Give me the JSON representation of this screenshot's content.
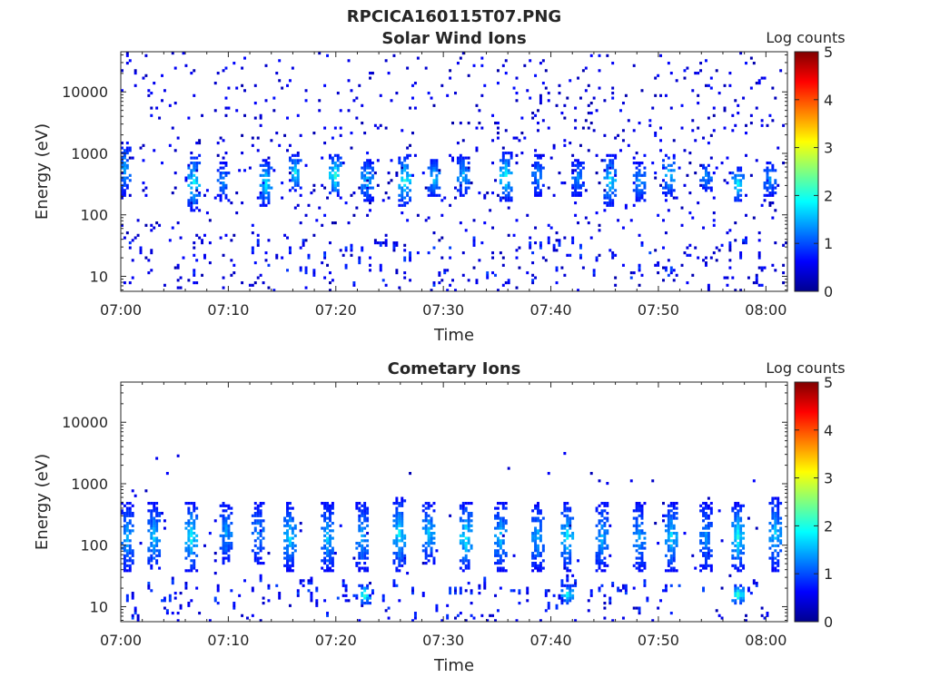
{
  "figure_title": "RPCICA160115T07.PNG",
  "chart_data": [
    {
      "type": "heatmap",
      "title": "Solar Wind Ions",
      "xlabel": "Time",
      "ylabel": "Energy (eV)",
      "x_ticks": [
        "07:00",
        "07:10",
        "07:20",
        "07:30",
        "07:40",
        "07:50",
        "08:00"
      ],
      "x_range_minutes": [
        0,
        62
      ],
      "y_ticks": [
        10,
        100,
        1000,
        10000
      ],
      "y_tick_labels": [
        "10",
        "100",
        "1000",
        "10000"
      ],
      "y_range_ev": [
        5.7,
        45000
      ],
      "y_scale": "log",
      "colorbar": {
        "label": "Log counts",
        "ticks": [
          0,
          1,
          2,
          3,
          4,
          5
        ],
        "range": [
          0,
          5
        ],
        "colormap": "jet"
      },
      "bursts": [
        {
          "t": 0.3,
          "e": [
            200,
            1500
          ],
          "max": 1.4
        },
        {
          "t": 6.8,
          "e": [
            120,
            900
          ],
          "max": 1.9
        },
        {
          "t": 9.5,
          "e": [
            180,
            700
          ],
          "max": 1.3
        },
        {
          "t": 13.5,
          "e": [
            150,
            800
          ],
          "max": 1.8
        },
        {
          "t": 16.3,
          "e": [
            250,
            900
          ],
          "max": 1.8
        },
        {
          "t": 20.0,
          "e": [
            200,
            900
          ],
          "max": 2.1
        },
        {
          "t": 23.0,
          "e": [
            180,
            800
          ],
          "max": 1.6
        },
        {
          "t": 26.3,
          "e": [
            150,
            900
          ],
          "max": 2.0
        },
        {
          "t": 29.2,
          "e": [
            200,
            800
          ],
          "max": 1.7
        },
        {
          "t": 31.8,
          "e": [
            200,
            900
          ],
          "max": 1.5
        },
        {
          "t": 35.8,
          "e": [
            180,
            1000
          ],
          "max": 2.0
        },
        {
          "t": 38.8,
          "e": [
            200,
            900
          ],
          "max": 1.3
        },
        {
          "t": 42.5,
          "e": [
            200,
            800
          ],
          "max": 1.3
        },
        {
          "t": 45.4,
          "e": [
            150,
            900
          ],
          "max": 1.8
        },
        {
          "t": 48.2,
          "e": [
            180,
            700
          ],
          "max": 1.4
        },
        {
          "t": 51.0,
          "e": [
            200,
            900
          ],
          "max": 1.7
        },
        {
          "t": 54.5,
          "e": [
            250,
            700
          ],
          "max": 1.3
        },
        {
          "t": 57.5,
          "e": [
            170,
            600
          ],
          "max": 1.9
        },
        {
          "t": 60.5,
          "e": [
            200,
            700
          ],
          "max": 1.4
        }
      ]
    },
    {
      "type": "heatmap",
      "title": "Cometary Ions",
      "xlabel": "Time",
      "ylabel": "Energy (eV)",
      "x_ticks": [
        "07:00",
        "07:10",
        "07:20",
        "07:30",
        "07:40",
        "07:50",
        "08:00"
      ],
      "x_range_minutes": [
        0,
        62
      ],
      "y_ticks": [
        10,
        100,
        1000,
        10000
      ],
      "y_tick_labels": [
        "10",
        "100",
        "1000",
        "10000"
      ],
      "y_range_ev": [
        5.7,
        45000
      ],
      "y_scale": "log",
      "colorbar": {
        "label": "Log counts",
        "ticks": [
          0,
          1,
          2,
          3,
          4,
          5
        ],
        "range": [
          0,
          5
        ],
        "colormap": "jet"
      },
      "bursts": [
        {
          "t": 0.5,
          "e": [
            40,
            500
          ],
          "max": 1.5
        },
        {
          "t": 3.0,
          "e": [
            40,
            500
          ],
          "max": 1.6
        },
        {
          "t": 6.5,
          "e": [
            40,
            500
          ],
          "max": 1.9
        },
        {
          "t": 9.8,
          "e": [
            50,
            500
          ],
          "max": 1.4
        },
        {
          "t": 12.8,
          "e": [
            50,
            500
          ],
          "max": 1.3
        },
        {
          "t": 15.8,
          "e": [
            40,
            500
          ],
          "max": 1.7
        },
        {
          "t": 19.3,
          "e": [
            40,
            500
          ],
          "max": 1.6
        },
        {
          "t": 22.5,
          "e": [
            40,
            500
          ],
          "max": 1.5
        },
        {
          "t": 25.8,
          "e": [
            40,
            600
          ],
          "max": 1.8
        },
        {
          "t": 28.6,
          "e": [
            50,
            500
          ],
          "max": 1.6
        },
        {
          "t": 32.2,
          "e": [
            40,
            500
          ],
          "max": 1.9
        },
        {
          "t": 35.3,
          "e": [
            40,
            500
          ],
          "max": 1.6
        },
        {
          "t": 38.8,
          "e": [
            40,
            500
          ],
          "max": 1.5
        },
        {
          "t": 41.6,
          "e": [
            40,
            500
          ],
          "max": 1.8
        },
        {
          "t": 44.8,
          "e": [
            40,
            500
          ],
          "max": 1.5
        },
        {
          "t": 48.3,
          "e": [
            40,
            500
          ],
          "max": 1.4
        },
        {
          "t": 51.1,
          "e": [
            40,
            500
          ],
          "max": 1.7
        },
        {
          "t": 54.5,
          "e": [
            40,
            500
          ],
          "max": 1.3
        },
        {
          "t": 57.5,
          "e": [
            40,
            500
          ],
          "max": 1.9
        },
        {
          "t": 61.0,
          "e": [
            40,
            600
          ],
          "max": 1.6
        },
        {
          "t": 22.6,
          "e": [
            12,
            22
          ],
          "max": 2.3
        },
        {
          "t": 57.5,
          "e": [
            12,
            22
          ],
          "max": 2.2
        },
        {
          "t": 41.6,
          "e": [
            12,
            22
          ],
          "max": 1.9
        }
      ]
    }
  ]
}
